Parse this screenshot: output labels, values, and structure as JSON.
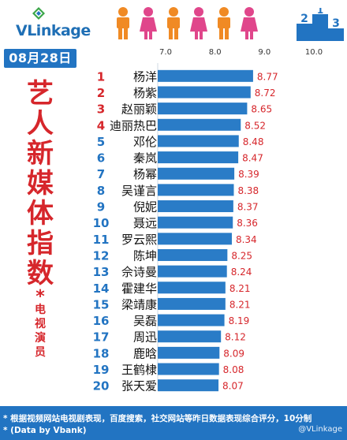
{
  "brand": {
    "logo_text": "VLinkage"
  },
  "header": {
    "date": "08月28日",
    "podium_numbers": [
      "2",
      "1",
      "3"
    ]
  },
  "side_title": {
    "big_chars": [
      "艺",
      "人",
      "新",
      "媒",
      "体",
      "指",
      "数"
    ],
    "star": "*",
    "small_chars": [
      "电",
      "视",
      "演",
      "员"
    ]
  },
  "colors": {
    "bar": "#2a7cc7",
    "rank_top": "#d6262b",
    "rank_other": "#2274c2",
    "value_text": "#d6262b",
    "accent_blue": "#2274c2",
    "person_orange": "#f08a24",
    "person_pink": "#e0468b"
  },
  "chart_data": {
    "type": "bar",
    "orientation": "horizontal",
    "xlim": [
      7.0,
      10.0
    ],
    "x_ticks": [
      "7.0",
      "8.0",
      "9.0",
      "10.0"
    ],
    "ranks": [
      "1",
      "2",
      "3",
      "4",
      "5",
      "6",
      "7",
      "8",
      "9",
      "10",
      "11",
      "12",
      "13",
      "14",
      "15",
      "16",
      "17",
      "18",
      "19",
      "20"
    ],
    "categories": [
      "杨洋",
      "杨紫",
      "赵丽颖",
      "迪丽热巴",
      "邓伦",
      "秦岚",
      "杨幂",
      "吴谨言",
      "倪妮",
      "聂远",
      "罗云熙",
      "陈坤",
      "佘诗曼",
      "霍建华",
      "梁靖康",
      "吴磊",
      "周迅",
      "鹿晗",
      "王鹤棣",
      "张天爱"
    ],
    "values": [
      8.77,
      8.72,
      8.65,
      8.52,
      8.48,
      8.47,
      8.39,
      8.38,
      8.37,
      8.36,
      8.34,
      8.25,
      8.24,
      8.21,
      8.21,
      8.19,
      8.12,
      8.09,
      8.08,
      8.07
    ],
    "value_labels": [
      "8.77",
      "8.72",
      "8.65",
      "8.52",
      "8.48",
      "8.47",
      "8.39",
      "8.38",
      "8.37",
      "8.36",
      "8.34",
      "8.25",
      "8.24",
      "8.21",
      "8.21",
      "8.19",
      "8.12",
      "8.09",
      "8.08",
      "8.07"
    ],
    "grid": false,
    "legend": "none"
  },
  "footer": {
    "note_line1": "* 根据视频网站电视剧表现，百度搜索，社交网站等昨日数据表现综合评分，10分制",
    "note_line2": "* (Data by Vbank)",
    "credit": "@VLinkage"
  }
}
